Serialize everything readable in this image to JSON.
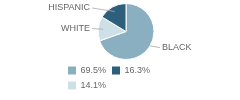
{
  "chart_data": {
    "type": "pie",
    "categories": [
      "BLACK",
      "WHITE",
      "HISPANIC"
    ],
    "values": [
      69.5,
      14.1,
      16.3
    ],
    "colors": [
      "#8aafc0",
      "#cde0e8",
      "#2e5f7a"
    ],
    "legend": "bottom left",
    "legend_entries": [
      {
        "label": "69.5%",
        "value": 69.5,
        "color": "#8aafc0"
      },
      {
        "label": "16.3%",
        "value": 16.3,
        "color": "#2e5f7a"
      },
      {
        "label": "14.1%",
        "value": 14.1,
        "color": "#cde0e8"
      }
    ]
  }
}
